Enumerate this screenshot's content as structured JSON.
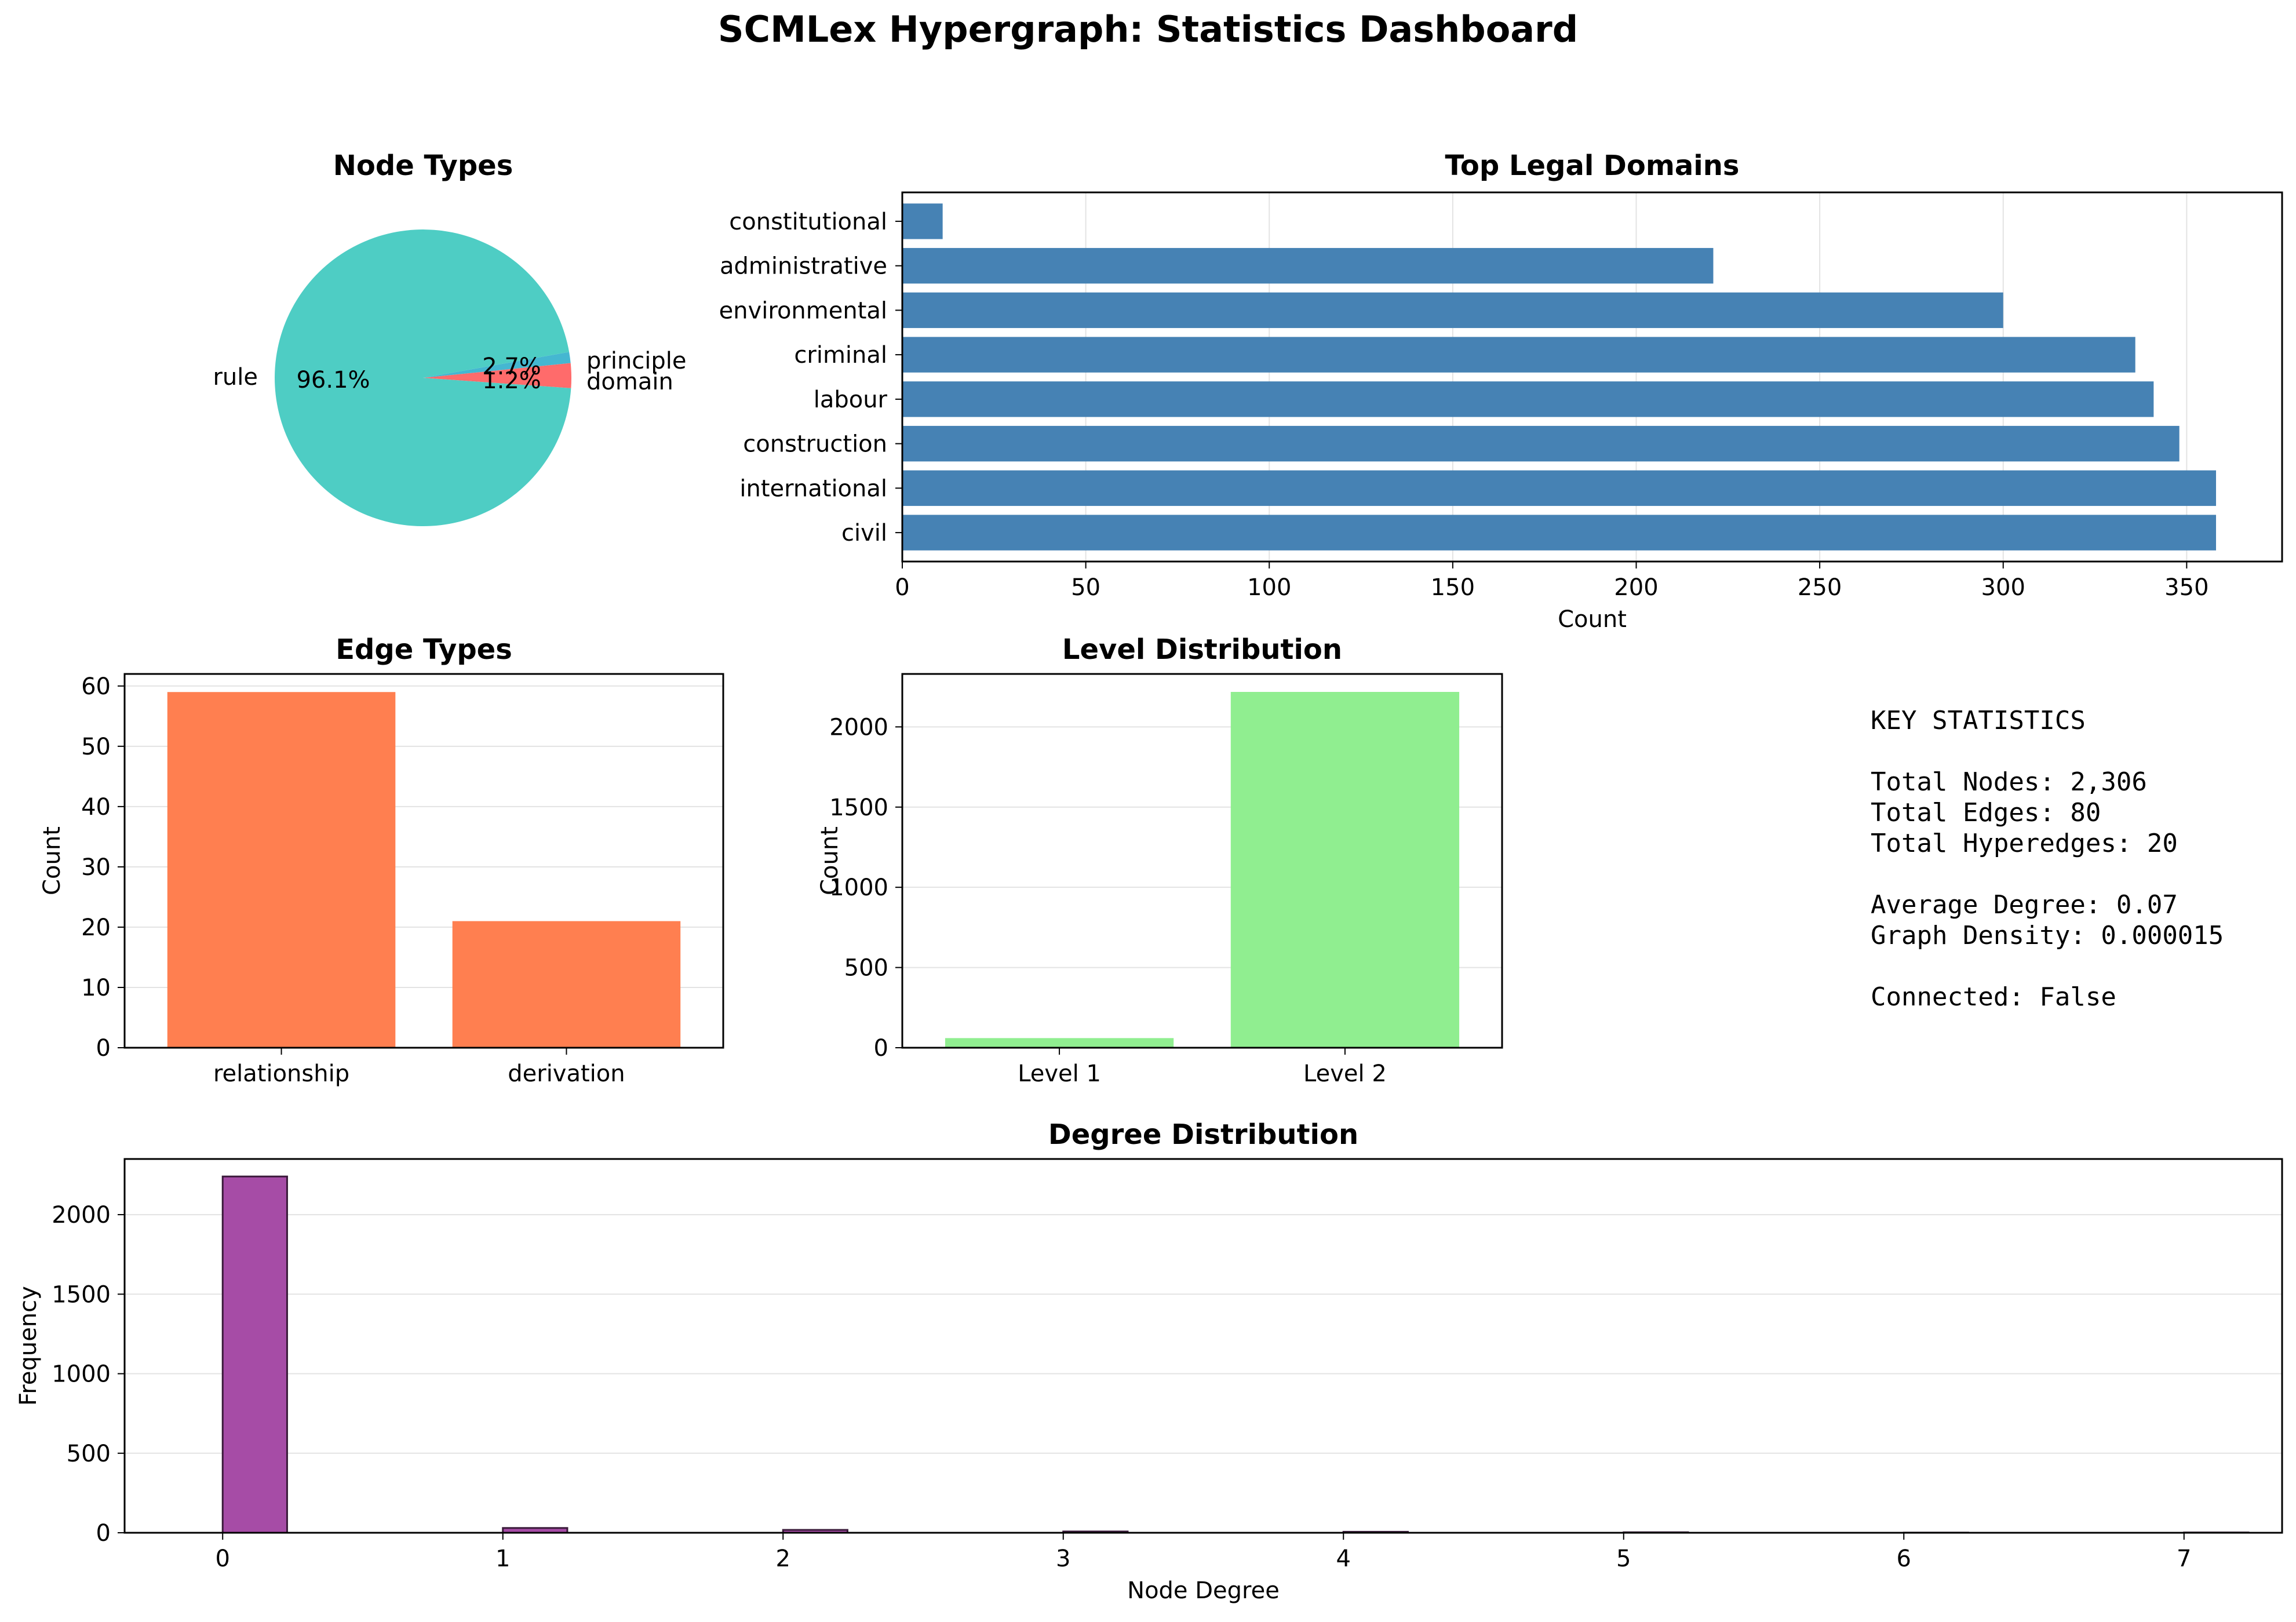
{
  "dashboard_title": "SCMLex Hypergraph: Statistics Dashboard",
  "chart_data": [
    {
      "id": "node_types",
      "type": "pie",
      "title": "Node Types",
      "labels": [
        "rule",
        "principle",
        "domain"
      ],
      "values": [
        96.1,
        2.7,
        1.2
      ],
      "pct_labels": [
        "96.1%",
        "2.7%",
        "1.2%"
      ],
      "colors": [
        "#4ecdc4",
        "#ff6b6b",
        "#45b7d1"
      ]
    },
    {
      "id": "top_domains",
      "type": "bar",
      "orientation": "horizontal",
      "title": "Top Legal Domains",
      "xlabel": "Count",
      "categories": [
        "constitutional",
        "administrative",
        "environmental",
        "criminal",
        "labour",
        "construction",
        "international",
        "civil"
      ],
      "values": [
        11,
        221,
        300,
        336,
        341,
        348,
        358,
        358
      ],
      "xlim": [
        0,
        376
      ],
      "xticks": [
        "0",
        "50",
        "100",
        "150",
        "200",
        "250",
        "300",
        "350"
      ],
      "grid": "x",
      "color": "#4682b4"
    },
    {
      "id": "edge_types",
      "type": "bar",
      "title": "Edge Types",
      "ylabel": "Count",
      "categories": [
        "relationship",
        "derivation"
      ],
      "values": [
        59,
        21
      ],
      "ylim": [
        0,
        62
      ],
      "yticks": [
        "0",
        "10",
        "20",
        "30",
        "40",
        "50",
        "60"
      ],
      "grid": "y",
      "color": "#ff7f50"
    },
    {
      "id": "level_distribution",
      "type": "bar",
      "title": "Level Distribution",
      "ylabel": "Count",
      "categories": [
        "Level 1",
        "Level 2"
      ],
      "values": [
        60,
        2218
      ],
      "ylim": [
        0,
        2330
      ],
      "yticks": [
        "0",
        "500",
        "1000",
        "1500",
        "2000"
      ],
      "grid": "y",
      "color": "#90ee90"
    },
    {
      "id": "degree_distribution",
      "type": "bar",
      "title": "Degree Distribution",
      "xlabel": "Node Degree",
      "ylabel": "Frequency",
      "x": [
        0,
        1,
        2,
        3,
        4,
        5,
        6,
        7
      ],
      "values": [
        2240,
        30,
        18,
        8,
        6,
        3,
        1,
        2
      ],
      "xlim": [
        -0.35,
        7.35
      ],
      "ylim": [
        0,
        2350
      ],
      "xticks": [
        "0",
        "1",
        "2",
        "3",
        "4",
        "5",
        "6",
        "7"
      ],
      "yticks": [
        "0",
        "500",
        "1000",
        "1500",
        "2000"
      ],
      "grid": "y",
      "color": "#a64ca6"
    }
  ],
  "key_statistics": {
    "heading": "KEY STATISTICS",
    "total_nodes": "Total Nodes: 2,306",
    "total_edges": "Total Edges: 80",
    "total_hyperedges": "Total Hyperedges: 20",
    "average_degree": "Average Degree: 0.07",
    "graph_density": "Graph Density: 0.000015",
    "connected": "Connected: False"
  }
}
